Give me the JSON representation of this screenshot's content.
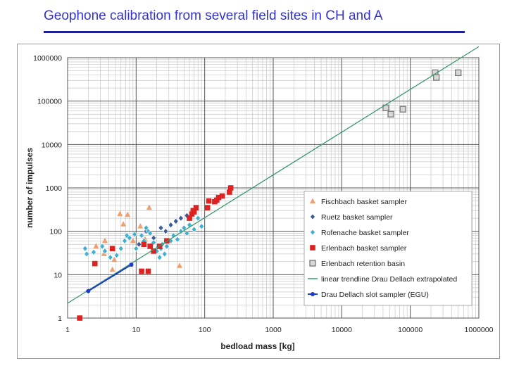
{
  "slide": {
    "title": "Geophone calibration from several field sites in CH and A"
  },
  "chart_data": {
    "type": "scatter",
    "title": "",
    "xlabel": "bedload mass  [kg]",
    "ylabel": "number of impulses",
    "xscale": "log",
    "yscale": "log",
    "xlim": [
      1,
      1000000
    ],
    "ylim": [
      1,
      1000000
    ],
    "grid": true,
    "legend_position": "lower-right",
    "x_ticks": [
      "1",
      "10",
      "100",
      "1000",
      "10000",
      "100000",
      "1000000"
    ],
    "y_ticks": [
      "1",
      "10",
      "100",
      "1000",
      "10000",
      "100000",
      "1000000"
    ],
    "series": [
      {
        "name": "Fischbach basket sampler",
        "marker": "triangle",
        "color": "#f0a070",
        "x": [
          2.6,
          3.4,
          3.5,
          4.5,
          4.8,
          5.8,
          6.5,
          7.5,
          9.0,
          11.5,
          13.5,
          15.5,
          43
        ],
        "y": [
          45,
          30,
          60,
          13,
          22,
          250,
          145,
          240,
          60,
          130,
          65,
          350,
          16
        ]
      },
      {
        "name": "Ruetz basket sampler",
        "marker": "diamond",
        "color": "#3a5a9a",
        "x": [
          11,
          14,
          18,
          23,
          27,
          32,
          38,
          45,
          55,
          68
        ],
        "y": [
          50,
          100,
          70,
          120,
          100,
          140,
          170,
          200,
          230,
          300
        ]
      },
      {
        "name": "Rofenache basket sampler",
        "marker": "diamond",
        "color": "#40b0d0",
        "x": [
          1.8,
          1.9,
          2.4,
          3.2,
          3.5,
          4.2,
          5.2,
          6.0,
          6.8,
          7.3,
          8.0,
          9.5,
          10,
          12,
          13,
          14,
          15,
          16,
          17,
          18,
          20,
          21,
          22,
          23,
          24,
          26,
          28,
          32,
          35,
          40,
          45,
          50,
          55,
          60,
          70,
          80,
          90
        ],
        "y": [
          40,
          30,
          33,
          45,
          35,
          25,
          28,
          40,
          60,
          80,
          70,
          85,
          40,
          80,
          60,
          120,
          100,
          90,
          50,
          55,
          35,
          45,
          25,
          40,
          50,
          30,
          45,
          60,
          80,
          65,
          100,
          120,
          90,
          140,
          110,
          200,
          130
        ]
      },
      {
        "name": "Erlenbach basket sampler",
        "marker": "square",
        "color": "#dd2222",
        "x": [
          1.5,
          2.5,
          4.5,
          12,
          13,
          15,
          16,
          18,
          22,
          28,
          60,
          65,
          68,
          70,
          75,
          110,
          115,
          140,
          150,
          160,
          180,
          230,
          240
        ],
        "y": [
          1,
          18,
          40,
          12,
          50,
          12,
          45,
          35,
          45,
          60,
          200,
          250,
          300,
          280,
          350,
          350,
          500,
          480,
          520,
          600,
          650,
          800,
          1000
        ]
      },
      {
        "name": "Erlenbach retention basin",
        "marker": "square-open",
        "color": "#777777",
        "x": [
          44000,
          52000,
          78000,
          230000,
          240000,
          500000
        ],
        "y": [
          70000,
          50000,
          65000,
          450000,
          350000,
          450000
        ]
      },
      {
        "name": "linear trendline Drau Dellach extrapolated",
        "marker": "line",
        "color": "#3a9a6a",
        "x": [
          1,
          1000000
        ],
        "y": [
          2.2,
          1800000
        ]
      },
      {
        "name": "Drau Dellach slot sampler (EGU)",
        "marker": "line-dot",
        "color": "#1a3ad0",
        "x": [
          2,
          8.5
        ],
        "y": [
          4.2,
          17
        ]
      }
    ]
  }
}
